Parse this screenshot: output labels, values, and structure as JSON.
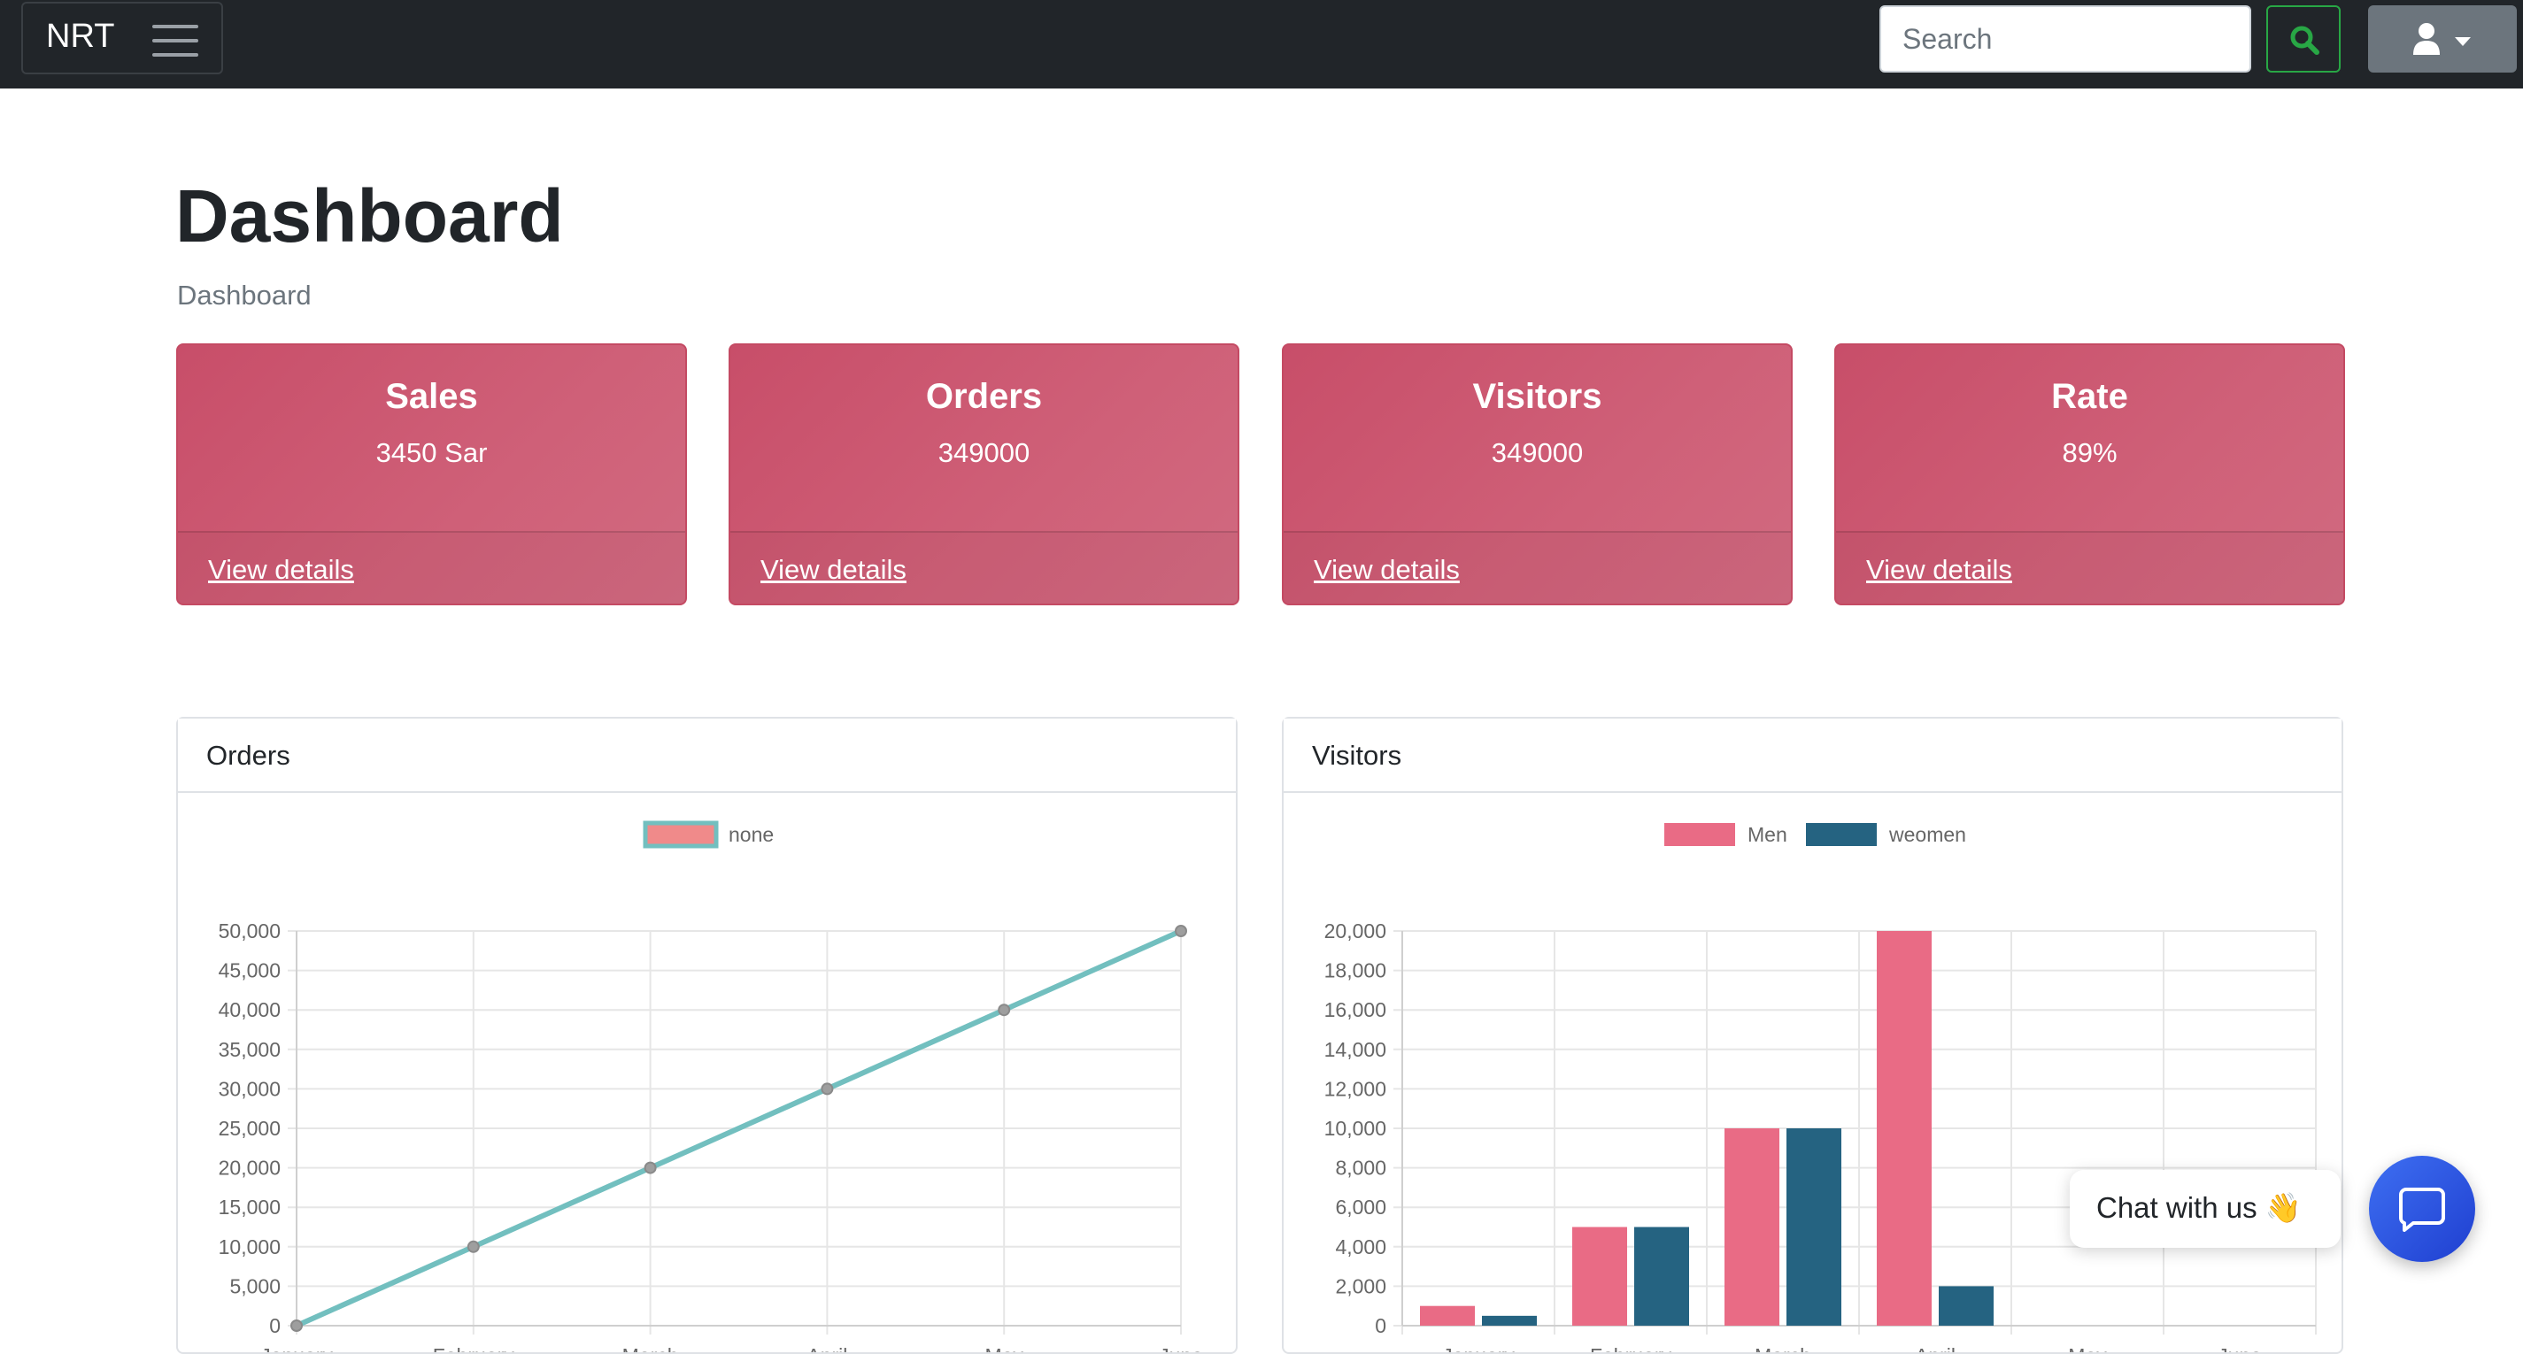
{
  "navbar": {
    "brand": "NRT",
    "search_placeholder": "Search"
  },
  "page": {
    "title": "Dashboard",
    "breadcrumb": "Dashboard"
  },
  "stats": [
    {
      "title": "Sales",
      "value": "3450 Sar",
      "link": "View details"
    },
    {
      "title": "Orders",
      "value": "349000",
      "link": "View details"
    },
    {
      "title": "Visitors",
      "value": "349000",
      "link": "View details"
    },
    {
      "title": "Rate",
      "value": "89%",
      "link": "View details"
    }
  ],
  "colors": {
    "card": "#c84e69",
    "line": "#72bfbf",
    "men": "#e96b85",
    "women": "#256381",
    "chat": "#2f56e6"
  },
  "orders_card": {
    "header": "Orders"
  },
  "visitors_card": {
    "header": "Visitors"
  },
  "chat": {
    "label": "Chat with us 👋"
  },
  "chart_data": [
    {
      "type": "line",
      "categories": [
        "January",
        "February",
        "March",
        "April",
        "May",
        "June"
      ],
      "series": [
        {
          "name": "none",
          "values": [
            0,
            10000,
            20000,
            30000,
            40000,
            50000
          ]
        }
      ],
      "ylim": [
        0,
        50000
      ],
      "yticks": [
        "50,000",
        "45,000",
        "40,000",
        "35,000",
        "30,000",
        "25,000",
        "20,000",
        "15,000",
        "10,000",
        "5,000",
        "0"
      ],
      "grid": true,
      "legend": "top-center"
    },
    {
      "type": "bar",
      "categories": [
        "January",
        "February",
        "March",
        "April",
        "May",
        "June"
      ],
      "series": [
        {
          "name": "Men",
          "values": [
            1000,
            5000,
            10000,
            20000,
            0,
            0
          ]
        },
        {
          "name": "weomen",
          "values": [
            500,
            5000,
            10000,
            2000,
            0,
            0
          ]
        }
      ],
      "ylim": [
        0,
        20000
      ],
      "yticks": [
        "20,000",
        "18,000",
        "16,000",
        "14,000",
        "12,000",
        "10,000",
        "8,000",
        "6,000",
        "4,000",
        "2,000",
        "0"
      ],
      "grid": true,
      "legend": "top-center"
    }
  ]
}
